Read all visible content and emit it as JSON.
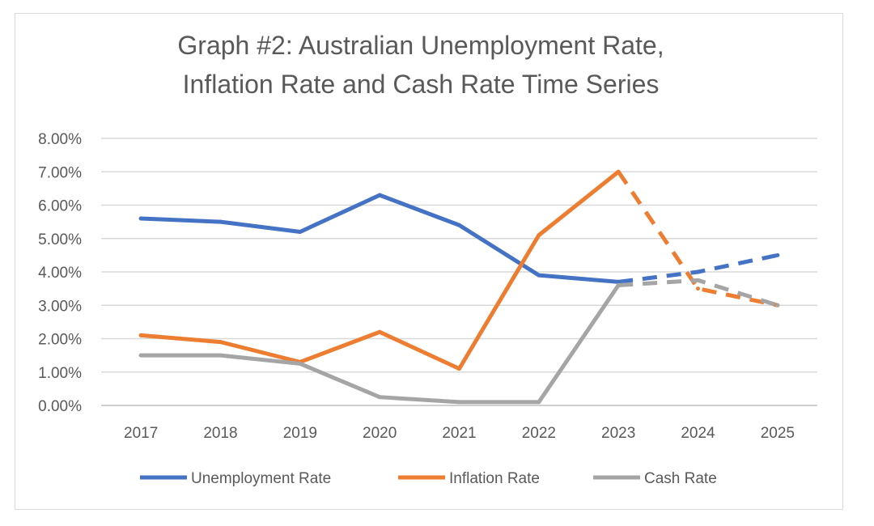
{
  "chart_data": {
    "type": "line",
    "title_lines": [
      "Graph #2: Australian Unemployment Rate,",
      "Inflation Rate and Cash Rate Time Series"
    ],
    "categories": [
      "2017",
      "2018",
      "2019",
      "2020",
      "2021",
      "2022",
      "2023",
      "2024",
      "2025"
    ],
    "y_ticks": [
      "0.00%",
      "1.00%",
      "2.00%",
      "3.00%",
      "4.00%",
      "5.00%",
      "6.00%",
      "7.00%",
      "8.00%"
    ],
    "ylim": [
      0,
      8
    ],
    "y_unit": "%",
    "grid": true,
    "legend_position": "bottom",
    "actual_through": "2023",
    "forecast_style": "dashed",
    "series": [
      {
        "name": "Unemployment Rate",
        "color": "#4472c4",
        "values": [
          5.6,
          5.5,
          5.2,
          6.3,
          5.4,
          3.9,
          3.7,
          4.0,
          4.5
        ]
      },
      {
        "name": "Inflation Rate",
        "color": "#ed7d31",
        "values": [
          2.1,
          1.9,
          1.3,
          2.2,
          1.1,
          5.1,
          7.0,
          3.5,
          3.0
        ]
      },
      {
        "name": "Cash Rate",
        "color": "#a5a5a5",
        "values": [
          1.5,
          1.5,
          1.25,
          0.25,
          0.1,
          0.1,
          3.6,
          3.75,
          3.0
        ]
      }
    ]
  }
}
